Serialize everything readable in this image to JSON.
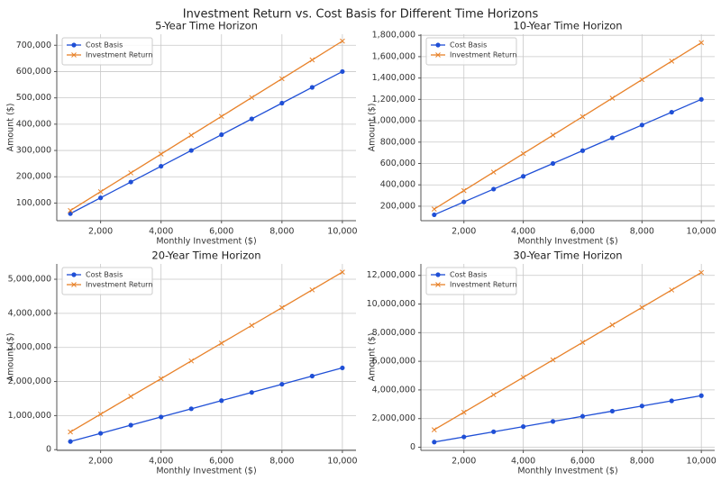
{
  "title": "Investment Return vs. Cost Basis for Different Time Horizons",
  "chart_data": [
    {
      "type": "line",
      "title": "5-Year Time Horizon",
      "x_label": "Monthly Investment ($)",
      "y_label": "Amount ($)",
      "x": [
        1000,
        2000,
        3000,
        4000,
        5000,
        6000,
        7000,
        8000,
        9000,
        10000
      ],
      "series": [
        {
          "name": "Cost Basis",
          "color": "#1f4fd6",
          "marker": "o",
          "values": [
            60000,
            120000,
            180000,
            240000,
            300000,
            360000,
            420000,
            480000,
            540000,
            600000
          ]
        },
        {
          "name": "Investment Return",
          "color": "#e8822a",
          "marker": "x",
          "values": [
            71600,
            143200,
            214800,
            286400,
            358000,
            429600,
            501200,
            572700,
            644300,
            715900
          ]
        }
      ],
      "xlim": [
        550,
        10450
      ],
      "ylim": [
        33000,
        742000
      ],
      "xticks": [
        {
          "value": 2000,
          "label": "2,000"
        },
        {
          "value": 4000,
          "label": "4,000"
        },
        {
          "value": 6000,
          "label": "6,000"
        },
        {
          "value": 8000,
          "label": "8,000"
        },
        {
          "value": 10000,
          "label": "10,000"
        }
      ],
      "yticks": [
        {
          "value": 100000,
          "label": "100,000"
        },
        {
          "value": 200000,
          "label": "200,000"
        },
        {
          "value": 300000,
          "label": "300,000"
        },
        {
          "value": 400000,
          "label": "400,000"
        },
        {
          "value": 500000,
          "label": "500,000"
        },
        {
          "value": 600000,
          "label": "600,000"
        },
        {
          "value": 700000,
          "label": "700,000"
        }
      ],
      "grid": true,
      "legend": "upper left"
    },
    {
      "type": "line",
      "title": "10-Year Time Horizon",
      "x_label": "Monthly Investment ($)",
      "y_label": "Amount ($)",
      "x": [
        1000,
        2000,
        3000,
        4000,
        5000,
        6000,
        7000,
        8000,
        9000,
        10000
      ],
      "series": [
        {
          "name": "Cost Basis",
          "color": "#1f4fd6",
          "marker": "o",
          "values": [
            120000,
            240000,
            360000,
            480000,
            600000,
            720000,
            840000,
            960000,
            1080000,
            1200000
          ]
        },
        {
          "name": "Investment Return",
          "color": "#e8822a",
          "marker": "x",
          "values": [
            173100,
            346200,
            519300,
            692300,
            865400,
            1038500,
            1211600,
            1384700,
            1557800,
            1730800
          ]
        }
      ],
      "xlim": [
        550,
        10450
      ],
      "ylim": [
        64500,
        1810000
      ],
      "xticks": [
        {
          "value": 2000,
          "label": "2,000"
        },
        {
          "value": 4000,
          "label": "4,000"
        },
        {
          "value": 6000,
          "label": "6,000"
        },
        {
          "value": 8000,
          "label": "8,000"
        },
        {
          "value": 10000,
          "label": "10,000"
        }
      ],
      "yticks": [
        {
          "value": 200000,
          "label": "200,000"
        },
        {
          "value": 400000,
          "label": "400,000"
        },
        {
          "value": 600000,
          "label": "600,000"
        },
        {
          "value": 800000,
          "label": "800,000"
        },
        {
          "value": 1000000,
          "label": "1,000,000"
        },
        {
          "value": 1200000,
          "label": "1,200,000"
        },
        {
          "value": 1400000,
          "label": "1,400,000"
        },
        {
          "value": 1600000,
          "label": "1,600,000"
        },
        {
          "value": 1800000,
          "label": "1,800,000"
        }
      ],
      "grid": true,
      "legend": "upper left"
    },
    {
      "type": "line",
      "title": "20-Year Time Horizon",
      "x_label": "Monthly Investment ($)",
      "y_label": "Amount ($)",
      "x": [
        1000,
        2000,
        3000,
        4000,
        5000,
        6000,
        7000,
        8000,
        9000,
        10000
      ],
      "series": [
        {
          "name": "Cost Basis",
          "color": "#1f4fd6",
          "marker": "o",
          "values": [
            240000,
            480000,
            720000,
            960000,
            1200000,
            1440000,
            1680000,
            1920000,
            2160000,
            2400000
          ]
        },
        {
          "name": "Investment Return",
          "color": "#e8822a",
          "marker": "x",
          "values": [
            520900,
            1041900,
            1562800,
            2083700,
            2604600,
            3125600,
            3646500,
            4167400,
            4688400,
            5209300
          ]
        }
      ],
      "xlim": [
        550,
        10450
      ],
      "ylim": [
        -20000,
        5450000
      ],
      "xticks": [
        {
          "value": 2000,
          "label": "2,000"
        },
        {
          "value": 4000,
          "label": "4,000"
        },
        {
          "value": 6000,
          "label": "6,000"
        },
        {
          "value": 8000,
          "label": "8,000"
        },
        {
          "value": 10000,
          "label": "10,000"
        }
      ],
      "yticks": [
        0,
        {
          "value": 1000000,
          "label": "1,000,000"
        },
        {
          "value": 2000000,
          "label": "2,000,000"
        },
        {
          "value": 3000000,
          "label": "3,000,000"
        },
        {
          "value": 4000000,
          "label": "4,000,000"
        },
        {
          "value": 5000000,
          "label": "5,000,000"
        }
      ],
      "grid": true,
      "legend": "upper left"
    },
    {
      "type": "line",
      "title": "30-Year Time Horizon",
      "x_label": "Monthly Investment ($)",
      "y_label": "Amount ($)",
      "x": [
        1000,
        2000,
        3000,
        4000,
        5000,
        6000,
        7000,
        8000,
        9000,
        10000
      ],
      "series": [
        {
          "name": "Cost Basis",
          "color": "#1f4fd6",
          "marker": "o",
          "values": [
            360000,
            720000,
            1080000,
            1440000,
            1800000,
            2160000,
            2520000,
            2880000,
            3240000,
            3600000
          ]
        },
        {
          "name": "Investment Return",
          "color": "#e8822a",
          "marker": "x",
          "values": [
            1220000,
            2439900,
            3659900,
            4879900,
            6099900,
            7319800,
            8539800,
            9759800,
            10979700,
            12199700
          ]
        }
      ],
      "xlim": [
        550,
        10450
      ],
      "ylim": [
        -220000,
        12800000
      ],
      "xticks": [
        {
          "value": 2000,
          "label": "2,000"
        },
        {
          "value": 4000,
          "label": "4,000"
        },
        {
          "value": 6000,
          "label": "6,000"
        },
        {
          "value": 8000,
          "label": "8,000"
        },
        {
          "value": 10000,
          "label": "10,000"
        }
      ],
      "yticks": [
        0,
        {
          "value": 2000000,
          "label": "2,000,000"
        },
        {
          "value": 4000000,
          "label": "4,000,000"
        },
        {
          "value": 6000000,
          "label": "6,000,000"
        },
        {
          "value": 8000000,
          "label": "8,000,000"
        },
        {
          "value": 10000000,
          "label": "10,000,000"
        },
        {
          "value": 12000000,
          "label": "12,000,000"
        }
      ],
      "grid": true,
      "legend": "upper left"
    }
  ]
}
